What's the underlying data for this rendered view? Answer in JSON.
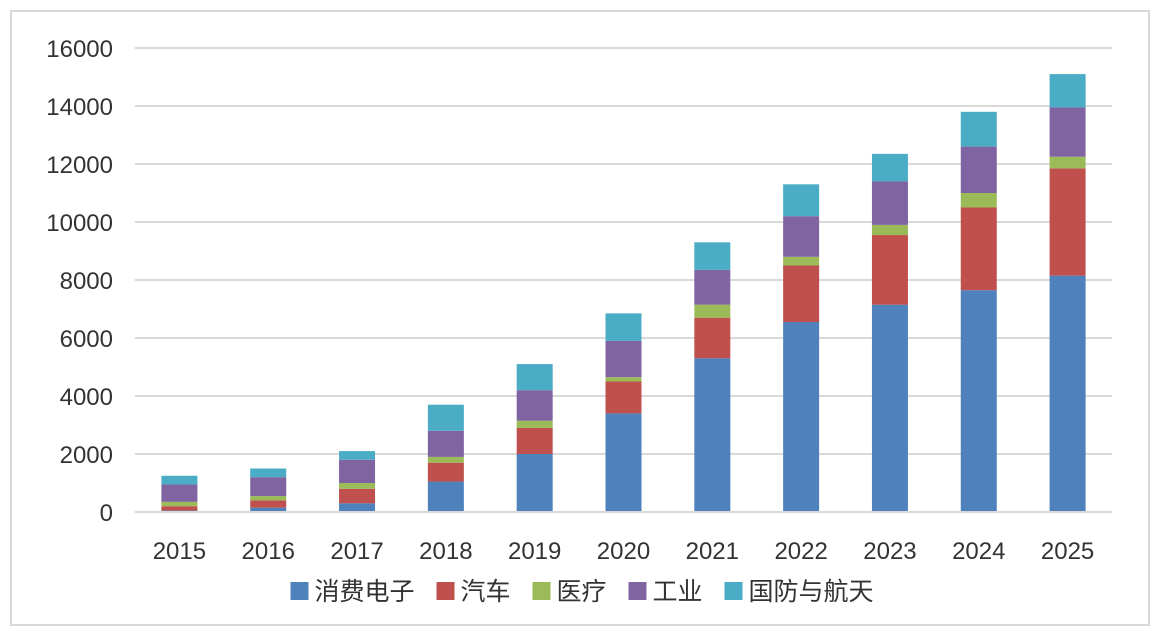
{
  "chart_data": {
    "type": "bar",
    "stacked": true,
    "title": "",
    "xlabel": "",
    "ylabel": "",
    "ylim": [
      0,
      16000
    ],
    "yticks": [
      0,
      2000,
      4000,
      6000,
      8000,
      10000,
      12000,
      14000,
      16000
    ],
    "grid": true,
    "legend_position": "bottom",
    "categories": [
      "2015",
      "2016",
      "2017",
      "2018",
      "2019",
      "2020",
      "2021",
      "2022",
      "2023",
      "2024",
      "2025"
    ],
    "series": [
      {
        "name": "消费电子",
        "color": "#4f81bd",
        "values": [
          50,
          150,
          300,
          1050,
          2000,
          3400,
          5300,
          6550,
          7150,
          7650,
          8150
        ]
      },
      {
        "name": "汽车",
        "color": "#c0504d",
        "values": [
          150,
          250,
          500,
          650,
          900,
          1100,
          1400,
          1950,
          2400,
          2850,
          3700
        ]
      },
      {
        "name": "医疗",
        "color": "#9bbb59",
        "values": [
          150,
          150,
          200,
          200,
          250,
          150,
          450,
          300,
          350,
          500,
          400
        ]
      },
      {
        "name": "工业",
        "color": "#8064a2",
        "values": [
          600,
          650,
          800,
          900,
          1050,
          1250,
          1200,
          1400,
          1500,
          1600,
          1700
        ]
      },
      {
        "name": "国防与航天",
        "color": "#4bacc6",
        "values": [
          300,
          300,
          300,
          900,
          900,
          950,
          950,
          1100,
          950,
          1200,
          1150
        ]
      }
    ]
  }
}
